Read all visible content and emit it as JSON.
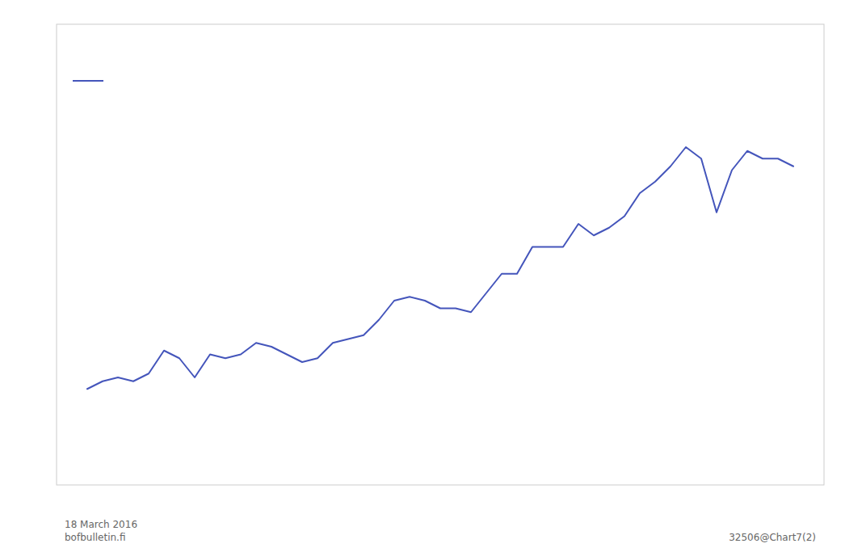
{
  "chart_data": {
    "type": "line",
    "x": [
      1968,
      1969,
      1970,
      1971,
      1972,
      1973,
      1974,
      1975,
      1976,
      1977,
      1978,
      1979,
      1980,
      1981,
      1982,
      1983,
      1984,
      1985,
      1986,
      1987,
      1988,
      1989,
      1990,
      1991,
      1992,
      1993,
      1994,
      1995,
      1996,
      1997,
      1998,
      1999,
      2000,
      2001,
      2002,
      2003,
      2004,
      2005,
      2006,
      2007,
      2008,
      2009,
      2010,
      2011,
      2012,
      2013,
      2014
    ],
    "values": [
      0.7,
      0.72,
      0.73,
      0.72,
      0.74,
      0.8,
      0.78,
      0.73,
      0.79,
      0.78,
      0.79,
      0.82,
      0.81,
      0.79,
      0.77,
      0.78,
      0.82,
      0.83,
      0.84,
      0.88,
      0.93,
      0.94,
      0.93,
      0.91,
      0.91,
      0.9,
      0.95,
      1.0,
      1.0,
      1.07,
      1.07,
      1.07,
      1.13,
      1.1,
      1.12,
      1.15,
      1.21,
      1.24,
      1.28,
      1.33,
      1.3,
      1.16,
      1.27,
      1.32,
      1.3,
      1.3,
      1.28
    ],
    "color": "#4455bb",
    "xlim": [
      1966,
      2016
    ],
    "ylim": [
      0.45,
      1.65
    ],
    "tick_labels": false,
    "grid": false,
    "legend": "upper left",
    "annotations": [
      "18 March 2016\nbofbulletin.fi",
      "32506@Chart7(2)"
    ]
  }
}
